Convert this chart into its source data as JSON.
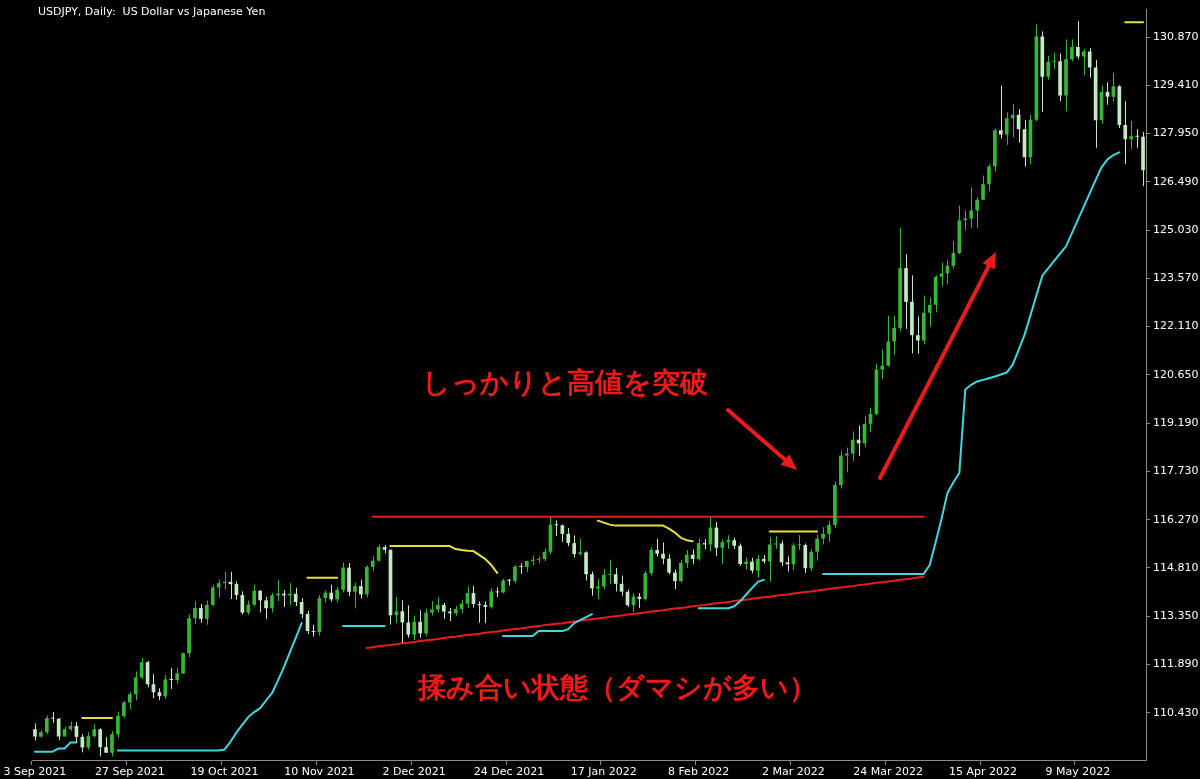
{
  "chart_data": {
    "type": "candlestick",
    "title": "USDJPY, Daily:  US Dollar vs Japanese Yen",
    "categories": [
      "3 Sep 2021",
      null,
      null,
      null,
      null,
      null,
      null,
      null,
      null,
      null,
      null,
      null,
      null,
      null,
      null,
      null,
      "27 Sep 2021",
      null,
      null,
      null,
      null,
      null,
      null,
      null,
      null,
      null,
      null,
      null,
      null,
      null,
      null,
      null,
      "19 Oct 2021",
      null,
      null,
      null,
      null,
      null,
      null,
      null,
      null,
      null,
      null,
      null,
      null,
      null,
      null,
      null,
      "10 Nov 2021",
      null,
      null,
      null,
      null,
      null,
      null,
      null,
      null,
      null,
      null,
      null,
      null,
      null,
      null,
      null,
      "2 Dec 2021",
      null,
      null,
      null,
      null,
      null,
      null,
      null,
      null,
      null,
      null,
      null,
      null,
      null,
      null,
      null,
      "24 Dec 2021",
      null,
      null,
      null,
      null,
      null,
      null,
      null,
      null,
      null,
      null,
      null,
      null,
      null,
      null,
      null,
      "17 Jan 2022",
      null,
      null,
      null,
      null,
      null,
      null,
      null,
      null,
      null,
      null,
      null,
      null,
      null,
      null,
      null,
      "8 Feb 2022",
      null,
      null,
      null,
      null,
      null,
      null,
      null,
      null,
      null,
      null,
      null,
      null,
      null,
      null,
      null,
      "2 Mar 2022",
      null,
      null,
      null,
      null,
      null,
      null,
      null,
      null,
      null,
      null,
      null,
      null,
      null,
      null,
      null,
      "24 Mar 2022",
      null,
      null,
      null,
      null,
      null,
      null,
      null,
      null,
      null,
      null,
      null,
      null,
      null,
      null,
      null,
      "15 Apr 2022",
      null,
      null,
      null,
      null,
      null,
      null,
      null,
      null,
      null,
      null,
      null,
      null,
      null,
      null,
      null,
      "9 May 2022",
      null,
      null,
      null,
      null,
      null,
      null,
      null,
      null,
      null,
      null,
      null
    ],
    "ohlc": [
      [
        109.93,
        110.11,
        109.59,
        109.71
      ],
      [
        109.71,
        109.9,
        109.68,
        109.84
      ],
      [
        109.84,
        110.35,
        109.78,
        110.27
      ],
      [
        110.27,
        110.45,
        110.12,
        110.25
      ],
      [
        110.25,
        110.27,
        109.6,
        109.71
      ],
      [
        109.71,
        110.0,
        109.71,
        109.93
      ],
      [
        109.93,
        110.16,
        109.88,
        110.03
      ],
      [
        110.03,
        110.15,
        109.53,
        109.7
      ],
      [
        109.7,
        109.78,
        109.23,
        109.38
      ],
      [
        109.38,
        109.84,
        109.31,
        109.72
      ],
      [
        109.72,
        110.08,
        109.68,
        109.93
      ],
      [
        109.93,
        109.96,
        109.11,
        109.39
      ],
      [
        109.39,
        109.69,
        109.21,
        109.22
      ],
      [
        109.22,
        109.87,
        109.11,
        109.78
      ],
      [
        109.78,
        110.45,
        109.67,
        110.33
      ],
      [
        110.33,
        110.79,
        110.28,
        110.74
      ],
      [
        110.74,
        111.06,
        110.55,
        110.99
      ],
      [
        110.99,
        111.68,
        110.8,
        111.5
      ],
      [
        111.5,
        112.08,
        111.45,
        111.96
      ],
      [
        111.96,
        112.0,
        111.2,
        111.29
      ],
      [
        111.29,
        111.6,
        110.87,
        111.05
      ],
      [
        111.05,
        111.17,
        110.81,
        110.93
      ],
      [
        110.93,
        111.57,
        110.85,
        111.44
      ],
      [
        111.44,
        111.79,
        111.15,
        111.42
      ],
      [
        111.42,
        111.79,
        111.31,
        111.62
      ],
      [
        111.62,
        112.25,
        111.6,
        112.23
      ],
      [
        112.23,
        113.41,
        112.11,
        113.29
      ],
      [
        113.29,
        113.8,
        113.11,
        113.6
      ],
      [
        113.6,
        113.72,
        113.15,
        113.27
      ],
      [
        113.27,
        113.82,
        113.09,
        113.69
      ],
      [
        113.69,
        114.3,
        113.66,
        114.22
      ],
      [
        114.22,
        114.46,
        113.92,
        114.35
      ],
      [
        114.35,
        114.7,
        114.16,
        114.39
      ],
      [
        114.39,
        114.69,
        113.87,
        114.32
      ],
      [
        114.32,
        114.4,
        113.85,
        113.99
      ],
      [
        113.99,
        114.1,
        113.41,
        113.46
      ],
      [
        113.46,
        113.82,
        113.4,
        113.7
      ],
      [
        113.7,
        114.31,
        113.65,
        114.12
      ],
      [
        114.12,
        114.14,
        113.46,
        113.83
      ],
      [
        113.83,
        113.93,
        113.27,
        113.59
      ],
      [
        113.59,
        114.05,
        113.46,
        113.98
      ],
      [
        113.98,
        114.44,
        113.81,
        114.03
      ],
      [
        114.03,
        114.14,
        113.63,
        113.98
      ],
      [
        113.98,
        114.35,
        113.68,
        114.03
      ],
      [
        114.03,
        114.21,
        113.66,
        113.78
      ],
      [
        113.78,
        113.9,
        113.29,
        113.42
      ],
      [
        113.42,
        113.51,
        112.81,
        112.9
      ],
      [
        112.9,
        113.09,
        112.73,
        112.87
      ],
      [
        112.87,
        113.99,
        112.76,
        113.9
      ],
      [
        113.9,
        114.13,
        113.76,
        114.06
      ],
      [
        114.06,
        114.3,
        113.79,
        113.86
      ],
      [
        113.86,
        114.24,
        113.77,
        114.15
      ],
      [
        114.15,
        114.97,
        114.07,
        114.82
      ],
      [
        114.82,
        114.96,
        113.96,
        114.09
      ],
      [
        114.09,
        114.37,
        113.59,
        114.26
      ],
      [
        114.26,
        114.46,
        113.88,
        114.01
      ],
      [
        114.01,
        114.89,
        113.92,
        114.84
      ],
      [
        114.84,
        115.16,
        114.72,
        115.03
      ],
      [
        115.03,
        115.52,
        115.0,
        115.44
      ],
      [
        115.44,
        115.5,
        115.25,
        115.36
      ],
      [
        115.36,
        115.36,
        113.1,
        113.38
      ],
      [
        113.38,
        113.93,
        113.15,
        113.5
      ],
      [
        113.5,
        113.83,
        112.54,
        113.16
      ],
      [
        113.16,
        113.68,
        112.7,
        112.79
      ],
      [
        112.79,
        113.37,
        112.63,
        113.18
      ],
      [
        113.18,
        113.53,
        112.7,
        112.83
      ],
      [
        112.83,
        113.58,
        112.74,
        113.46
      ],
      [
        113.46,
        113.81,
        113.37,
        113.55
      ],
      [
        113.55,
        113.94,
        113.46,
        113.69
      ],
      [
        113.69,
        113.75,
        113.27,
        113.49
      ],
      [
        113.49,
        113.6,
        113.2,
        113.44
      ],
      [
        113.44,
        113.66,
        113.37,
        113.57
      ],
      [
        113.57,
        113.85,
        113.45,
        113.73
      ],
      [
        113.73,
        114.25,
        113.6,
        114.05
      ],
      [
        114.05,
        114.27,
        113.61,
        113.72
      ],
      [
        113.72,
        113.8,
        113.15,
        113.69
      ],
      [
        113.69,
        113.8,
        113.14,
        113.63
      ],
      [
        113.63,
        114.19,
        113.58,
        114.1
      ],
      [
        114.1,
        114.22,
        113.93,
        114.07
      ],
      [
        114.07,
        114.48,
        114.04,
        114.43
      ],
      [
        114.43,
        114.48,
        114.28,
        114.42
      ],
      [
        114.42,
        114.89,
        114.35,
        114.85
      ],
      [
        114.85,
        114.95,
        114.63,
        114.84
      ],
      [
        114.84,
        115.03,
        114.69,
        115.02
      ],
      [
        115.02,
        115.18,
        114.89,
        115.06
      ],
      [
        115.06,
        115.16,
        114.95,
        115.08
      ],
      [
        115.08,
        115.4,
        115.02,
        115.3
      ],
      [
        115.3,
        116.35,
        115.23,
        116.12
      ],
      [
        116.12,
        116.25,
        115.78,
        116.1
      ],
      [
        116.1,
        116.12,
        115.6,
        115.84
      ],
      [
        115.84,
        116.02,
        115.47,
        115.56
      ],
      [
        115.56,
        115.79,
        115.13,
        115.23
      ],
      [
        115.23,
        115.69,
        115.18,
        115.28
      ],
      [
        115.28,
        115.31,
        114.43,
        114.62
      ],
      [
        114.62,
        114.7,
        113.97,
        114.19
      ],
      [
        114.19,
        114.48,
        113.86,
        114.25
      ],
      [
        114.25,
        114.78,
        114.17,
        114.6
      ],
      [
        114.6,
        115.06,
        114.31,
        114.62
      ],
      [
        114.62,
        114.81,
        114.1,
        114.33
      ],
      [
        114.33,
        114.58,
        113.97,
        114.09
      ],
      [
        114.09,
        114.16,
        113.63,
        113.68
      ],
      [
        113.68,
        114.04,
        113.47,
        113.94
      ],
      [
        113.94,
        114.05,
        113.6,
        113.87
      ],
      [
        113.87,
        114.72,
        113.82,
        114.65
      ],
      [
        114.65,
        115.43,
        114.58,
        115.35
      ],
      [
        115.35,
        115.69,
        115.16,
        115.24
      ],
      [
        115.24,
        115.58,
        114.92,
        115.09
      ],
      [
        115.09,
        115.22,
        114.62,
        114.67
      ],
      [
        114.67,
        114.76,
        114.17,
        114.41
      ],
      [
        114.41,
        115.05,
        114.36,
        114.96
      ],
      [
        114.96,
        115.35,
        114.81,
        115.21
      ],
      [
        115.21,
        115.37,
        114.93,
        115.08
      ],
      [
        115.08,
        115.69,
        115.03,
        115.56
      ],
      [
        115.56,
        115.68,
        115.37,
        115.52
      ],
      [
        115.52,
        116.34,
        115.31,
        116.03
      ],
      [
        116.03,
        116.2,
        115.17,
        115.42
      ],
      [
        115.42,
        115.68,
        114.94,
        115.59
      ],
      [
        115.59,
        115.8,
        115.39,
        115.65
      ],
      [
        115.65,
        115.73,
        115.38,
        115.48
      ],
      [
        115.48,
        115.55,
        114.87,
        114.93
      ],
      [
        114.93,
        115.13,
        114.76,
        115.0
      ],
      [
        115.0,
        115.12,
        114.65,
        114.73
      ],
      [
        114.73,
        115.2,
        114.51,
        115.08
      ],
      [
        115.08,
        115.2,
        114.95,
        115.01
      ],
      [
        115.01,
        115.74,
        114.41,
        115.52
      ],
      [
        115.52,
        115.77,
        115.39,
        115.55
      ],
      [
        115.55,
        115.64,
        114.87,
        114.98
      ],
      [
        114.98,
        115.16,
        114.7,
        114.92
      ],
      [
        114.92,
        115.56,
        114.75,
        115.49
      ],
      [
        115.49,
        115.8,
        115.35,
        115.5
      ],
      [
        115.5,
        115.55,
        114.65,
        114.8
      ],
      [
        114.8,
        115.37,
        114.72,
        115.3
      ],
      [
        115.3,
        115.81,
        115.03,
        115.7
      ],
      [
        115.7,
        116.04,
        115.52,
        115.84
      ],
      [
        115.84,
        116.23,
        115.6,
        116.11
      ],
      [
        116.11,
        117.42,
        116.02,
        117.32
      ],
      [
        117.32,
        118.36,
        117.21,
        118.21
      ],
      [
        118.21,
        118.45,
        117.7,
        118.27
      ],
      [
        118.27,
        118.94,
        118.05,
        118.69
      ],
      [
        118.69,
        119.12,
        118.2,
        118.58
      ],
      [
        118.58,
        119.4,
        118.47,
        119.17
      ],
      [
        119.17,
        119.65,
        118.91,
        119.47
      ],
      [
        119.47,
        120.99,
        119.43,
        120.81
      ],
      [
        120.81,
        121.41,
        120.52,
        120.93
      ],
      [
        120.93,
        122.44,
        120.9,
        121.66
      ],
      [
        121.66,
        122.44,
        121.25,
        122.07
      ],
      [
        122.07,
        125.09,
        121.97,
        123.88
      ],
      [
        123.88,
        124.3,
        122.04,
        122.86
      ],
      [
        122.86,
        123.66,
        121.3,
        121.85
      ],
      [
        121.85,
        122.42,
        121.29,
        121.69
      ],
      [
        121.69,
        123.05,
        121.57,
        122.53
      ],
      [
        122.53,
        122.98,
        122.12,
        122.77
      ],
      [
        122.77,
        123.66,
        122.54,
        123.62
      ],
      [
        123.62,
        124.05,
        123.33,
        123.72
      ],
      [
        123.72,
        124.11,
        123.4,
        123.95
      ],
      [
        123.95,
        124.69,
        123.86,
        124.34
      ],
      [
        124.34,
        125.77,
        124.31,
        125.33
      ],
      [
        125.33,
        125.63,
        125.03,
        125.38
      ],
      [
        125.38,
        126.32,
        125.1,
        125.62
      ],
      [
        125.62,
        126.03,
        125.09,
        125.95
      ],
      [
        125.95,
        126.68,
        125.94,
        126.42
      ],
      [
        126.42,
        127.03,
        126.22,
        126.95
      ],
      [
        126.95,
        128.1,
        126.8,
        128.05
      ],
      [
        128.05,
        129.4,
        127.8,
        127.92
      ],
      [
        127.92,
        128.59,
        127.61,
        128.41
      ],
      [
        128.41,
        128.84,
        127.84,
        128.52
      ],
      [
        128.52,
        128.69,
        127.67,
        128.08
      ],
      [
        128.08,
        128.36,
        126.95,
        127.23
      ],
      [
        127.23,
        128.52,
        127.02,
        128.37
      ],
      [
        128.37,
        131.25,
        128.32,
        130.89
      ],
      [
        130.89,
        131.04,
        128.61,
        129.67
      ],
      [
        129.67,
        130.3,
        129.58,
        130.12
      ],
      [
        130.12,
        130.4,
        129.9,
        130.14
      ],
      [
        130.14,
        130.37,
        128.93,
        129.1
      ],
      [
        129.1,
        130.8,
        128.62,
        130.2
      ],
      [
        130.2,
        130.8,
        130.14,
        130.57
      ],
      [
        130.57,
        131.35,
        130.2,
        130.28
      ],
      [
        130.28,
        130.51,
        129.71,
        130.43
      ],
      [
        130.43,
        130.53,
        129.64,
        129.95
      ],
      [
        129.95,
        130.18,
        127.52,
        128.35
      ],
      [
        128.35,
        129.4,
        128.24,
        129.21
      ],
      [
        129.21,
        129.5,
        128.82,
        129.06
      ],
      [
        129.06,
        129.78,
        128.92,
        129.38
      ],
      [
        129.38,
        129.41,
        128.12,
        128.21
      ],
      [
        128.21,
        128.93,
        127.03,
        127.78
      ],
      [
        127.78,
        128.33,
        127.49,
        127.87
      ],
      [
        127.87,
        128.08,
        127.52,
        127.85
      ],
      [
        127.85,
        128.0,
        126.36,
        126.84
      ]
    ],
    "colors": [
      "#c3eac3",
      "#36b836",
      "#36b836",
      "#c3eac3",
      "#c3eac3",
      "#36b836",
      "#36b836",
      "#c3eac3",
      "#c3eac3",
      "#36b836",
      "#36b836",
      "#c3eac3",
      "#c3eac3",
      "#36b836",
      "#36b836",
      "#36b836",
      "#36b836",
      "#36b836",
      "#36b836",
      "#c3eac3",
      "#c3eac3",
      "#c3eac3",
      "#36b836",
      "#c3eac3",
      "#36b836",
      "#36b836",
      "#36b836",
      "#36b836",
      "#c3eac3",
      "#36b836",
      "#36b836",
      "#36b836",
      "#36b836",
      "#c3eac3",
      "#c3eac3",
      "#c3eac3",
      "#36b836",
      "#36b836",
      "#c3eac3",
      "#c3eac3",
      "#36b836",
      "#36b836",
      "#c3eac3",
      "#36b836",
      "#c3eac3",
      "#c3eac3",
      "#c3eac3",
      "#c3eac3",
      "#36b836",
      "#36b836",
      "#c3eac3",
      "#36b836",
      "#36b836",
      "#c3eac3",
      "#36b836",
      "#c3eac3",
      "#36b836",
      "#36b836",
      "#36b836",
      "#c3eac3",
      "#c3eac3",
      "#36b836",
      "#c3eac3",
      "#c3eac3",
      "#36b836",
      "#c3eac3",
      "#36b836",
      "#36b836",
      "#36b836",
      "#c3eac3",
      "#c3eac3",
      "#36b836",
      "#36b836",
      "#36b836",
      "#c3eac3",
      "#c3eac3",
      "#c3eac3",
      "#36b836",
      "#c3eac3",
      "#36b836",
      "#c3eac3",
      "#36b836",
      "#c3eac3",
      "#36b836",
      "#36b836",
      "#36b836",
      "#36b836",
      "#36b836",
      "#c3eac3",
      "#c3eac3",
      "#c3eac3",
      "#c3eac3",
      "#36b836",
      "#c3eac3",
      "#c3eac3",
      "#36b836",
      "#36b836",
      "#36b836",
      "#c3eac3",
      "#c3eac3",
      "#c3eac3",
      "#36b836",
      "#c3eac3",
      "#36b836",
      "#36b836",
      "#c3eac3",
      "#c3eac3",
      "#c3eac3",
      "#c3eac3",
      "#36b836",
      "#36b836",
      "#c3eac3",
      "#36b836",
      "#c3eac3",
      "#36b836",
      "#c3eac3",
      "#36b836",
      "#36b836",
      "#c3eac3",
      "#c3eac3",
      "#36b836",
      "#c3eac3",
      "#36b836",
      "#c3eac3",
      "#36b836",
      "#36b836",
      "#c3eac3",
      "#c3eac3",
      "#36b836",
      "#36b836",
      "#c3eac3",
      "#36b836",
      "#36b836",
      "#36b836",
      "#36b836",
      "#36b836",
      "#36b836",
      "#36b836",
      "#36b836",
      "#c3eac3",
      "#36b836",
      "#36b836",
      "#36b836",
      "#36b836",
      "#36b836",
      "#36b836",
      "#36b836",
      "#c3eac3",
      "#c3eac3",
      "#c3eac3",
      "#36b836",
      "#36b836",
      "#36b836",
      "#36b836",
      "#36b836",
      "#36b836",
      "#36b836",
      "#36b836",
      "#36b836",
      "#36b836",
      "#36b836",
      "#36b836",
      "#36b836",
      "#c3eac3",
      "#36b836",
      "#36b836",
      "#c3eac3",
      "#c3eac3",
      "#36b836",
      "#36b836",
      "#c3eac3",
      "#36b836",
      "#36b836",
      "#c3eac3",
      "#36b836",
      "#36b836",
      "#c3eac3",
      "#36b836",
      "#c3eac3",
      "#c3eac3",
      "#36b836",
      "#c3eac3",
      "#36b836",
      "#c3eac3",
      "#c3eac3",
      "#36b836",
      "#c3eac3",
      "#c3eac3"
    ],
    "series": [
      {
        "type": "line",
        "color": "#3fd8e0",
        "values": [
          109.25,
          109.25,
          109.25,
          109.25,
          109.35,
          109.35,
          109.53,
          109.53,
          null,
          null,
          null,
          null,
          null,
          null,
          109.29,
          109.29,
          109.29,
          109.29,
          109.29,
          109.29,
          109.29,
          109.29,
          109.29,
          109.29,
          109.29,
          109.29,
          109.29,
          109.29,
          109.29,
          109.29,
          109.29,
          109.29,
          109.32,
          109.55,
          109.83,
          110.07,
          110.3,
          110.45,
          110.57,
          110.8,
          111.02,
          111.4,
          111.8,
          112.25,
          112.69,
          113.14,
          null,
          null,
          null,
          null,
          null,
          null,
          113.05,
          113.05,
          113.05,
          113.05,
          113.05,
          113.05,
          113.05,
          113.05,
          null,
          null,
          null,
          null,
          null,
          null,
          null,
          null,
          null,
          null,
          null,
          null,
          null,
          null,
          null,
          null,
          null,
          null,
          null,
          112.75,
          112.75,
          112.75,
          112.75,
          112.75,
          112.75,
          112.9,
          112.9,
          112.9,
          112.9,
          112.9,
          112.96,
          113.14,
          113.23,
          113.32,
          113.41,
          null,
          null,
          null,
          null,
          null,
          null,
          null,
          null,
          null,
          null,
          null,
          null,
          null,
          null,
          null,
          null,
          null,
          113.59,
          113.59,
          113.59,
          113.59,
          113.59,
          113.59,
          113.65,
          113.8,
          114.0,
          114.2,
          114.39,
          114.45,
          null,
          null,
          null,
          null,
          null,
          null,
          null,
          null,
          null,
          114.63,
          114.63,
          114.63,
          114.63,
          114.63,
          114.63,
          114.63,
          114.63,
          114.63,
          114.63,
          114.63,
          114.63,
          114.63,
          114.63,
          114.63,
          114.63,
          114.63,
          114.63,
          114.9,
          115.59,
          116.3,
          117.08,
          117.4,
          117.68,
          120.21,
          120.35,
          120.45,
          120.5,
          120.55,
          120.6,
          120.66,
          120.72,
          120.96,
          121.4,
          121.86,
          122.45,
          123.05,
          123.65,
          123.87,
          124.1,
          124.32,
          124.54,
          124.94,
          125.34,
          125.74,
          126.14,
          126.54,
          126.93,
          127.17,
          127.3,
          127.38,
          null,
          null,
          null,
          null
        ]
      },
      {
        "type": "line",
        "color": "#e8e040",
        "values": [
          null,
          null,
          null,
          null,
          null,
          null,
          null,
          null,
          110.27,
          110.27,
          110.27,
          110.27,
          110.27,
          110.27,
          null,
          null,
          null,
          null,
          null,
          null,
          null,
          null,
          null,
          null,
          null,
          null,
          null,
          null,
          null,
          null,
          null,
          null,
          null,
          null,
          null,
          null,
          null,
          null,
          null,
          null,
          null,
          null,
          null,
          null,
          null,
          null,
          114.51,
          114.51,
          114.51,
          114.51,
          114.51,
          114.51,
          null,
          null,
          null,
          null,
          null,
          null,
          null,
          null,
          115.47,
          115.47,
          115.47,
          115.47,
          115.47,
          115.47,
          115.47,
          115.47,
          115.47,
          115.47,
          115.47,
          115.38,
          115.35,
          115.33,
          115.32,
          115.2,
          115.08,
          114.9,
          114.66,
          null,
          null,
          null,
          null,
          null,
          null,
          null,
          null,
          null,
          null,
          null,
          null,
          null,
          null,
          null,
          null,
          116.24,
          116.18,
          116.12,
          116.09,
          116.09,
          116.09,
          116.09,
          116.09,
          116.09,
          116.09,
          116.09,
          116.09,
          116.0,
          115.88,
          115.72,
          115.65,
          115.62,
          null,
          null,
          null,
          null,
          null,
          null,
          null,
          null,
          null,
          null,
          null,
          null,
          115.91,
          115.91,
          115.91,
          115.91,
          115.91,
          115.91,
          115.91,
          115.91,
          115.91,
          null,
          null,
          null,
          null,
          null,
          null,
          null,
          null,
          null,
          null,
          null,
          null,
          null,
          null,
          null,
          null,
          null,
          null,
          null,
          null,
          null,
          null,
          null,
          null,
          null,
          null,
          null,
          null,
          null,
          null,
          null,
          null,
          null,
          null,
          null,
          null,
          null,
          null,
          null,
          null,
          null,
          null,
          null,
          null,
          null,
          null,
          null,
          null,
          null,
          null,
          null,
          131.32,
          131.32,
          131.32,
          131.32
        ]
      },
      {
        "type": "line",
        "color": "#e81c1c",
        "values": [
          null,
          null,
          null,
          null,
          null,
          null,
          null,
          null,
          null,
          null,
          null,
          null,
          null,
          null,
          null,
          null,
          null,
          null,
          null,
          null,
          null,
          null,
          null,
          null,
          null,
          null,
          null,
          null,
          null,
          null,
          null,
          null,
          null,
          null,
          null,
          null,
          null,
          null,
          null,
          null,
          null,
          null,
          null,
          null,
          null,
          null,
          null,
          null,
          null,
          null,
          null,
          null,
          null,
          null,
          null,
          null,
          null,
          116.36,
          116.36,
          116.36,
          116.36,
          116.36,
          116.36,
          116.36,
          116.36,
          116.36,
          116.36,
          116.36,
          116.36,
          116.36,
          116.36,
          116.36,
          116.36,
          116.36,
          116.36,
          116.36,
          116.36,
          116.36,
          116.36,
          116.36,
          116.36,
          116.36,
          116.36,
          116.36,
          116.36,
          116.36,
          116.36,
          116.36,
          116.36,
          116.36,
          116.36,
          116.36,
          116.36,
          116.36,
          116.36,
          116.36,
          116.36,
          116.36,
          116.36,
          116.36,
          116.36,
          116.36,
          116.36,
          116.36,
          116.36,
          116.36,
          116.36,
          116.36,
          116.36,
          116.36,
          116.36,
          116.36,
          116.36,
          116.36,
          116.36,
          116.36,
          116.36,
          116.36,
          116.36,
          116.36,
          116.36,
          116.36,
          116.36,
          116.36,
          116.36,
          116.36,
          116.36,
          116.36,
          116.36,
          116.36,
          116.36,
          116.36,
          116.36,
          116.36,
          116.36,
          116.36,
          116.36,
          116.36,
          116.36,
          116.36,
          116.36,
          116.36,
          116.36,
          116.36,
          116.36,
          116.36,
          116.36,
          116.36,
          116.36,
          116.36,
          116.36,
          null,
          null,
          null,
          null,
          null,
          null,
          null,
          null,
          null,
          null,
          null,
          null,
          null,
          null,
          null,
          null,
          null,
          null,
          null,
          null,
          null,
          null,
          null,
          null,
          null,
          null,
          null,
          null,
          null,
          null,
          null,
          null,
          null,
          null,
          null,
          null,
          null
        ]
      },
      {
        "type": "line",
        "color": "#e81c1c",
        "values": [
          null,
          null,
          null,
          null,
          null,
          null,
          null,
          null,
          null,
          null,
          null,
          null,
          null,
          null,
          null,
          null,
          null,
          null,
          null,
          null,
          null,
          null,
          null,
          null,
          null,
          null,
          null,
          null,
          null,
          null,
          null,
          null,
          null,
          null,
          null,
          null,
          null,
          null,
          null,
          null,
          null,
          null,
          null,
          null,
          null,
          null,
          null,
          null,
          null,
          null,
          null,
          null,
          null,
          null,
          null,
          null,
          112.39,
          112.41,
          112.44,
          112.46,
          112.48,
          112.5,
          112.53,
          112.55,
          112.57,
          112.6,
          112.62,
          112.64,
          112.66,
          112.69,
          112.71,
          112.73,
          112.76,
          112.78,
          112.8,
          112.82,
          112.85,
          112.87,
          112.89,
          112.92,
          112.94,
          112.96,
          112.98,
          113.01,
          113.03,
          113.05,
          113.08,
          113.1,
          113.12,
          113.14,
          113.17,
          113.19,
          113.21,
          113.24,
          113.26,
          113.28,
          113.3,
          113.33,
          113.35,
          113.37,
          113.4,
          113.42,
          113.44,
          113.46,
          113.49,
          113.51,
          113.53,
          113.56,
          113.58,
          113.6,
          113.62,
          113.65,
          113.67,
          113.69,
          113.72,
          113.74,
          113.76,
          113.78,
          113.81,
          113.83,
          113.85,
          113.88,
          113.9,
          113.92,
          113.94,
          113.97,
          113.99,
          114.01,
          114.04,
          114.06,
          114.08,
          114.1,
          114.13,
          114.15,
          114.17,
          114.2,
          114.22,
          114.24,
          114.26,
          114.29,
          114.31,
          114.33,
          114.36,
          114.38,
          114.4,
          114.42,
          114.45,
          114.47,
          114.49,
          114.52,
          114.54,
          null,
          null,
          null,
          null,
          null,
          null,
          null,
          null,
          null,
          null,
          null,
          null,
          null,
          null,
          null,
          null,
          null,
          null,
          null,
          null,
          null,
          null,
          null,
          null,
          null,
          null,
          null,
          null,
          null,
          null,
          null,
          null,
          null,
          null,
          null,
          null,
          null
        ]
      }
    ],
    "ylim": [
      109.0,
      131.7
    ],
    "yticks": [
      {
        "value": 110.43,
        "label": "110.430"
      },
      {
        "value": 111.89,
        "label": "111.890"
      },
      {
        "value": 113.35,
        "label": "113.350"
      },
      {
        "value": 114.81,
        "label": "114.810"
      },
      {
        "value": 116.27,
        "label": "116.270"
      },
      {
        "value": 117.73,
        "label": "117.730"
      },
      {
        "value": 119.19,
        "label": "119.190"
      },
      {
        "value": 120.65,
        "label": "120.650"
      },
      {
        "value": 122.11,
        "label": "122.110"
      },
      {
        "value": 123.57,
        "label": "123.570"
      },
      {
        "value": 125.03,
        "label": "125.030"
      },
      {
        "value": 126.49,
        "label": "126.490"
      },
      {
        "value": 127.95,
        "label": "127.950"
      },
      {
        "value": 129.41,
        "label": "129.410"
      },
      {
        "value": 130.87,
        "label": "130.870"
      }
    ],
    "annotations": [
      "しっかりと高値を突破",
      "揉み合い状態（ダマシが多い）"
    ],
    "marker": "none",
    "grid": false,
    "legend": false
  }
}
